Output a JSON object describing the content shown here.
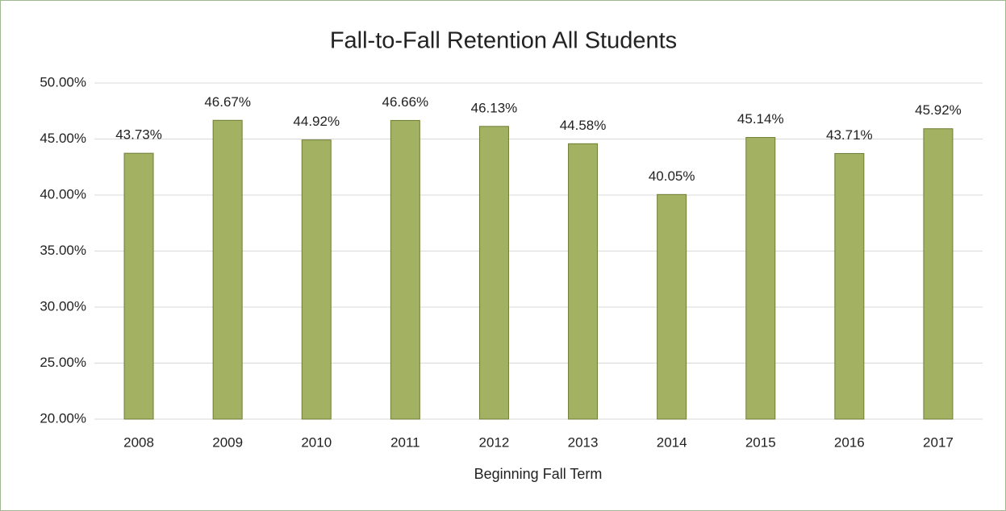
{
  "chart_data": {
    "type": "bar",
    "title": "Fall-to-Fall Retention All Students",
    "x_label": "Beginning Fall Term",
    "categories": [
      "2008",
      "2009",
      "2010",
      "2011",
      "2012",
      "2013",
      "2014",
      "2015",
      "2016",
      "2017"
    ],
    "values": [
      43.73,
      46.67,
      44.92,
      46.66,
      46.13,
      44.58,
      40.05,
      45.14,
      43.71,
      45.92
    ],
    "value_labels": [
      "43.73%",
      "46.67%",
      "44.92%",
      "46.66%",
      "46.13%",
      "44.58%",
      "40.05%",
      "45.14%",
      "43.71%",
      "45.92%"
    ],
    "color": "#a3b163",
    "ylim": [
      20,
      50
    ],
    "yticks": [
      {
        "value": 20,
        "label": "20.00%"
      },
      {
        "value": 25,
        "label": "25.00%"
      },
      {
        "value": 30,
        "label": "30.00%"
      },
      {
        "value": 35,
        "label": "35.00%"
      },
      {
        "value": 40,
        "label": "40.00%"
      },
      {
        "value": 45,
        "label": "45.00%"
      },
      {
        "value": 50,
        "label": "50.00%"
      }
    ],
    "grid": true
  }
}
